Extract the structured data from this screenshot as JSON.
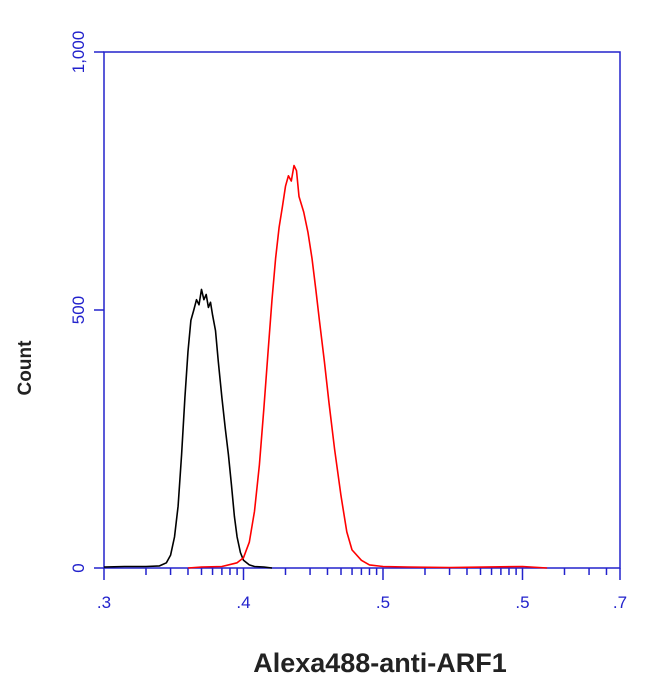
{
  "chart_data": {
    "type": "line",
    "title": "",
    "xlabel": "Alexa488-anti-ARF1",
    "ylabel": "Count",
    "x_scale": "log",
    "xlim": [
      1000,
      5000000
    ],
    "ylim": [
      0,
      1000
    ],
    "grid": false,
    "legend": "none",
    "x_ticks": [
      {
        "value": 1000,
        "label": ".3"
      },
      {
        "value": 10000,
        "label": ".4"
      },
      {
        "value": 100000,
        "label": ".5"
      },
      {
        "value": 1000000,
        "label": ".5"
      },
      {
        "value": 5000000,
        "label": ".7"
      }
    ],
    "y_ticks": [
      {
        "value": 0,
        "label": "0"
      },
      {
        "value": 500,
        "label": "500"
      },
      {
        "value": 1000,
        "label": "1,000"
      }
    ],
    "series": [
      {
        "color": "#000000",
        "points": [
          [
            1000,
            2
          ],
          [
            1400,
            3
          ],
          [
            2000,
            3
          ],
          [
            2500,
            4
          ],
          [
            2800,
            10
          ],
          [
            3000,
            25
          ],
          [
            3200,
            60
          ],
          [
            3400,
            120
          ],
          [
            3600,
            220
          ],
          [
            3800,
            330
          ],
          [
            4000,
            420
          ],
          [
            4200,
            480
          ],
          [
            4400,
            500
          ],
          [
            4600,
            520
          ],
          [
            4800,
            510
          ],
          [
            5000,
            540
          ],
          [
            5200,
            520
          ],
          [
            5400,
            530
          ],
          [
            5600,
            505
          ],
          [
            5800,
            515
          ],
          [
            6000,
            490
          ],
          [
            6300,
            460
          ],
          [
            6600,
            400
          ],
          [
            7000,
            330
          ],
          [
            7400,
            270
          ],
          [
            7800,
            220
          ],
          [
            8200,
            160
          ],
          [
            8600,
            100
          ],
          [
            9000,
            60
          ],
          [
            9500,
            30
          ],
          [
            10000,
            15
          ],
          [
            11000,
            6
          ],
          [
            12000,
            3
          ],
          [
            14000,
            2
          ],
          [
            16000,
            0
          ]
        ]
      },
      {
        "color": "#ff0000",
        "points": [
          [
            4000,
            0
          ],
          [
            5000,
            2
          ],
          [
            7000,
            3
          ],
          [
            9000,
            10
          ],
          [
            10000,
            20
          ],
          [
            11000,
            50
          ],
          [
            12000,
            110
          ],
          [
            13000,
            200
          ],
          [
            14000,
            310
          ],
          [
            15000,
            420
          ],
          [
            16000,
            520
          ],
          [
            17000,
            600
          ],
          [
            18000,
            660
          ],
          [
            19000,
            700
          ],
          [
            20000,
            740
          ],
          [
            21000,
            760
          ],
          [
            22000,
            750
          ],
          [
            23000,
            780
          ],
          [
            24000,
            770
          ],
          [
            25000,
            720
          ],
          [
            27000,
            690
          ],
          [
            29000,
            650
          ],
          [
            31000,
            600
          ],
          [
            33000,
            540
          ],
          [
            35000,
            480
          ],
          [
            38000,
            400
          ],
          [
            41000,
            320
          ],
          [
            45000,
            230
          ],
          [
            50000,
            140
          ],
          [
            55000,
            70
          ],
          [
            60000,
            35
          ],
          [
            70000,
            15
          ],
          [
            80000,
            6
          ],
          [
            100000,
            3
          ],
          [
            150000,
            2
          ],
          [
            300000,
            1
          ],
          [
            1000000,
            3
          ],
          [
            1500000,
            0
          ]
        ]
      }
    ]
  }
}
